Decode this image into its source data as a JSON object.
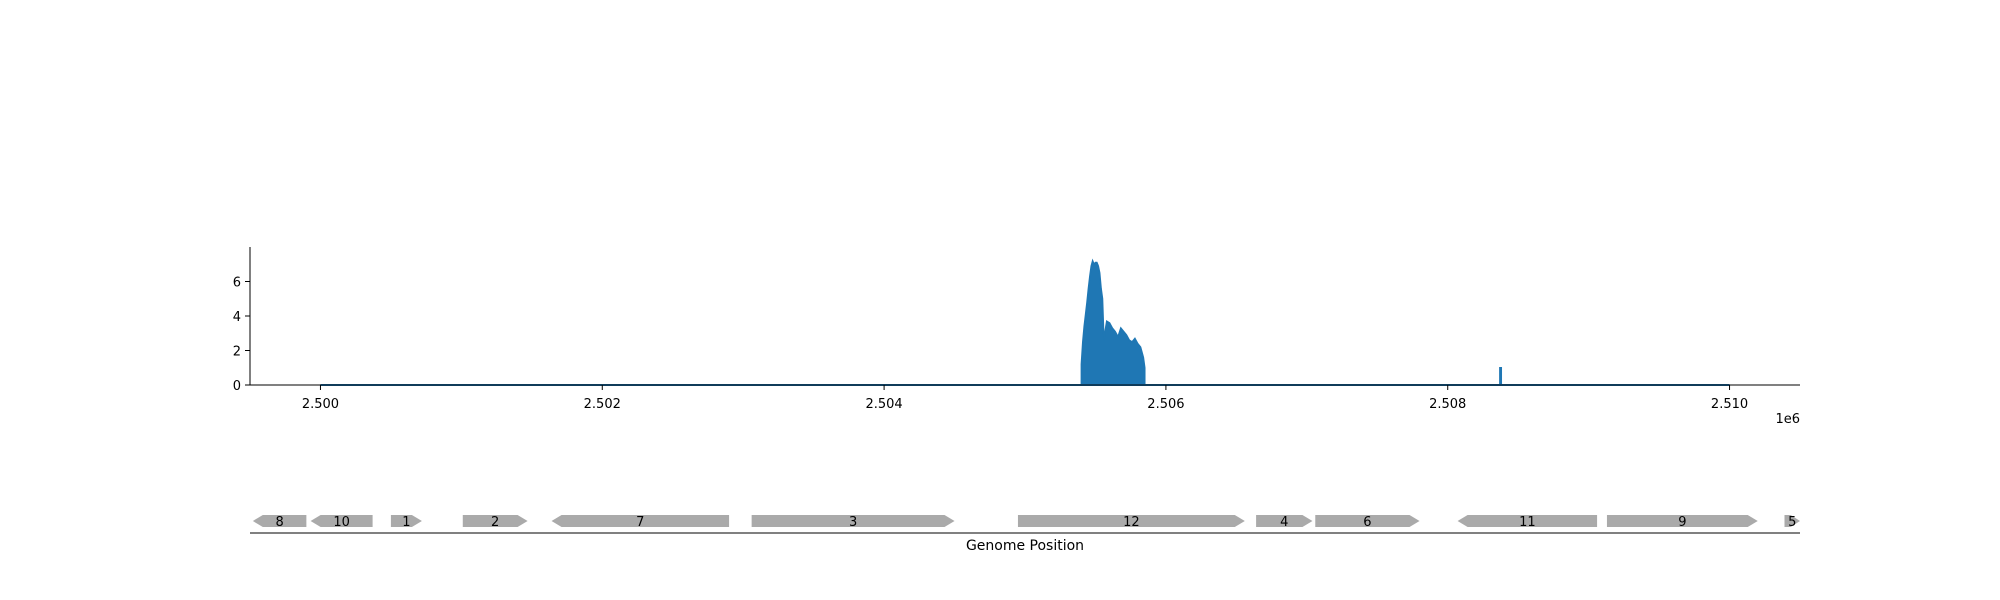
{
  "chart_data": [
    {
      "type": "area",
      "title": "",
      "xlabel": "",
      "ylabel": "",
      "offset_label": "1e6",
      "xlim": [
        2499500,
        2510500
      ],
      "ylim": [
        0,
        8
      ],
      "xticks": [
        2500000,
        2502000,
        2504000,
        2506000,
        2508000,
        2510000
      ],
      "xtick_labels": [
        "2.500",
        "2.502",
        "2.504",
        "2.506",
        "2.508",
        "2.510"
      ],
      "yticks": [
        0,
        2,
        4,
        6
      ],
      "ytick_labels": [
        "0",
        "2",
        "4",
        "6"
      ],
      "grid": false,
      "color": "#1f77b4",
      "baseline": {
        "x_start": 2500000,
        "x_end": 2510000,
        "value": 0
      },
      "series": [
        {
          "x": [
            2505400,
            2505410,
            2505420,
            2505430,
            2505440,
            2505450,
            2505460,
            2505470,
            2505480,
            2505490,
            2505500,
            2505510,
            2505520,
            2505530,
            2505540,
            2505550,
            2505560,
            2505570,
            2505580,
            2505600,
            2505620,
            2505640,
            2505660,
            2505680,
            2505700,
            2505720,
            2505740,
            2505760,
            2505780,
            2505800,
            2505820,
            2505840,
            2505850
          ],
          "values": [
            1.2,
            2.5,
            3.4,
            4.1,
            4.8,
            5.6,
            6.3,
            6.9,
            7.2,
            7.0,
            7.1,
            7.1,
            6.9,
            6.5,
            5.6,
            5.0,
            2.6,
            3.2,
            3.7,
            3.6,
            3.3,
            3.1,
            2.8,
            3.3,
            3.1,
            2.9,
            2.6,
            2.5,
            2.7,
            2.4,
            2.2,
            1.6,
            1.0
          ]
        },
        {
          "x": [
            2508370,
            2508380
          ],
          "values": [
            1.0,
            1.0
          ]
        }
      ]
    },
    {
      "type": "gene-map",
      "xlabel": "Genome Position",
      "color": "#aaaaaa",
      "genes": [
        {
          "label": "8",
          "start": 2499520,
          "end": 2499900,
          "strand": "-"
        },
        {
          "label": "10",
          "start": 2499930,
          "end": 2500370,
          "strand": "-"
        },
        {
          "label": "1",
          "start": 2500500,
          "end": 2500720,
          "strand": "+"
        },
        {
          "label": "2",
          "start": 2501010,
          "end": 2501470,
          "strand": "+"
        },
        {
          "label": "7",
          "start": 2501640,
          "end": 2502900,
          "strand": "-"
        },
        {
          "label": "3",
          "start": 2503060,
          "end": 2504500,
          "strand": "+"
        },
        {
          "label": "12",
          "start": 2504950,
          "end": 2506560,
          "strand": "+"
        },
        {
          "label": "4",
          "start": 2506640,
          "end": 2507040,
          "strand": "+"
        },
        {
          "label": "6",
          "start": 2507060,
          "end": 2507800,
          "strand": "+"
        },
        {
          "label": "11",
          "start": 2508070,
          "end": 2509060,
          "strand": "-"
        },
        {
          "label": "9",
          "start": 2509130,
          "end": 2510200,
          "strand": "+"
        },
        {
          "label": "5",
          "start": 2510390,
          "end": 2510500,
          "strand": "+"
        }
      ]
    }
  ]
}
